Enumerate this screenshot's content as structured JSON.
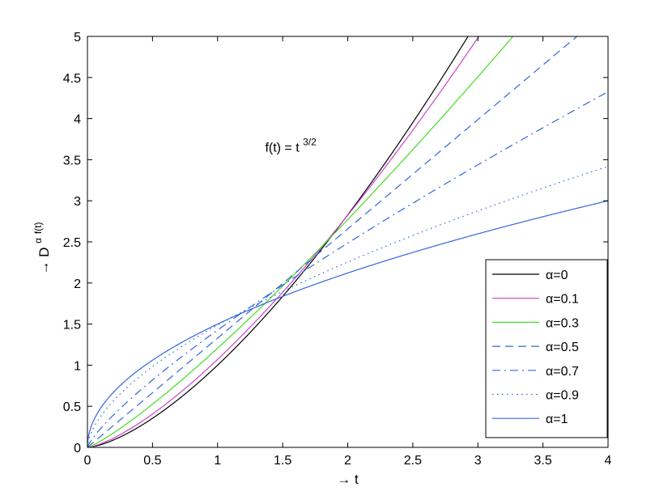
{
  "chart_data": {
    "type": "line",
    "function_formula": "t^{3/2} fractional derivative",
    "xlabel": "→ t",
    "ylabel": "→ D",
    "ylabel_sup_alpha": "α",
    "ylabel_sup_ft": "f(t)",
    "annotation": {
      "text": "f(t) = t",
      "sup": "3/2",
      "x": 1.5,
      "y": 3.55
    },
    "xlim": [
      0,
      4
    ],
    "ylim": [
      0,
      5
    ],
    "xticks": [
      0,
      0.5,
      1,
      1.5,
      2,
      2.5,
      3,
      3.5,
      4
    ],
    "yticks": [
      0,
      0.5,
      1,
      1.5,
      2,
      2.5,
      3,
      3.5,
      4,
      4.5,
      5
    ],
    "xtick_labels": [
      "0",
      "0.5",
      "1",
      "1.5",
      "2",
      "2.5",
      "3",
      "3.5",
      "4"
    ],
    "ytick_labels": [
      "0",
      "0.5",
      "1",
      "1.5",
      "2",
      "2.5",
      "3",
      "3.5",
      "4",
      "4.5",
      "5"
    ],
    "grid": false,
    "legend_position": "lower-right",
    "series": [
      {
        "name": "α=0",
        "alpha": 0,
        "color": "#000000",
        "dash": "solid"
      },
      {
        "name": "α=0.1",
        "alpha": 0.1,
        "color": "#cc44cc",
        "dash": "solid"
      },
      {
        "name": "α=0.3",
        "alpha": 0.3,
        "color": "#44dd22",
        "dash": "solid"
      },
      {
        "name": "α=0.5",
        "alpha": 0.5,
        "color": "#3366dd",
        "dash": "dashed"
      },
      {
        "name": "α=0.7",
        "alpha": 0.7,
        "color": "#3366dd",
        "dash": "dashdot"
      },
      {
        "name": "α=0.9",
        "alpha": 0.9,
        "color": "#3366dd",
        "dash": "dotted"
      },
      {
        "name": "α=1",
        "alpha": 1,
        "color": "#3366dd",
        "dash": "solid"
      }
    ]
  }
}
